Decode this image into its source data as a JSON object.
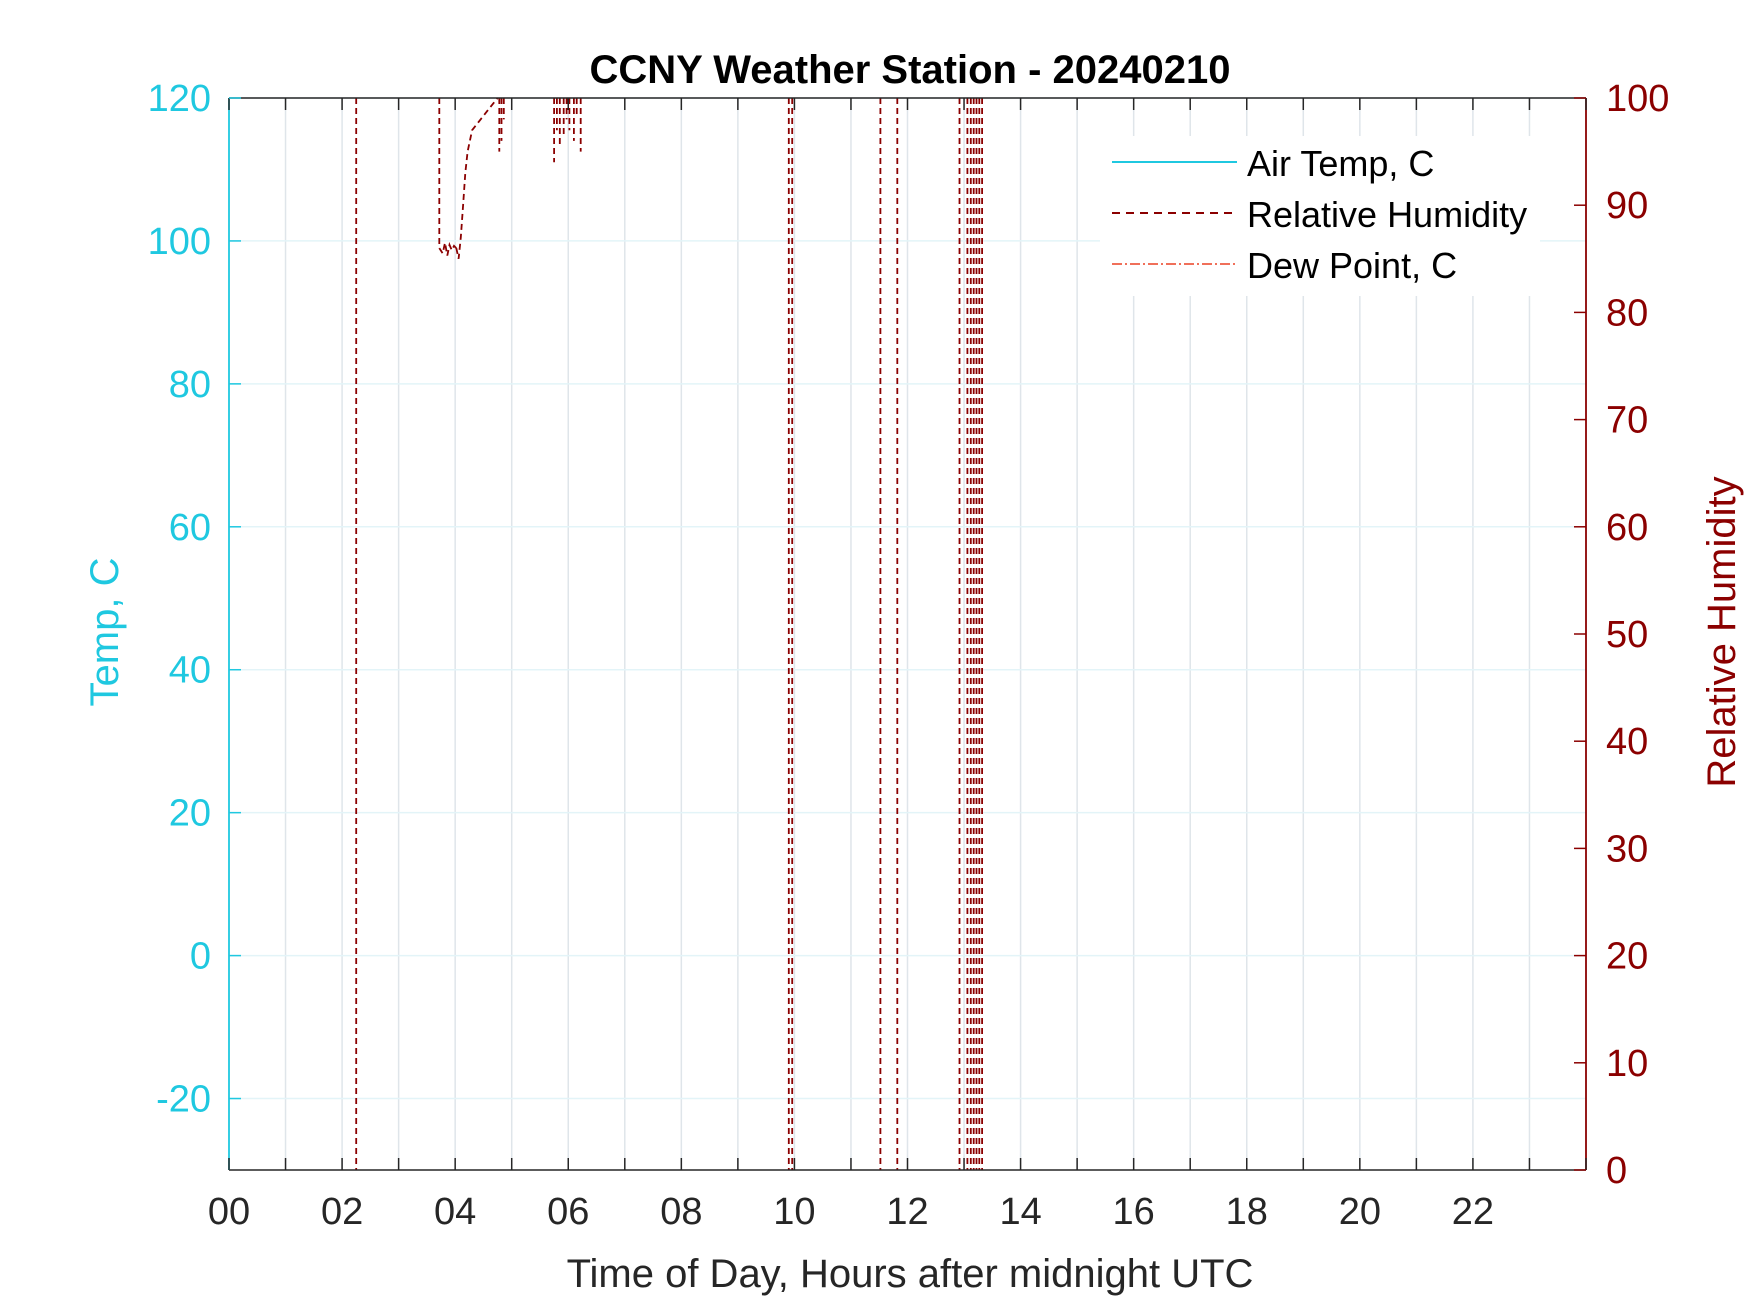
{
  "chart_data": {
    "type": "line",
    "title": "CCNY Weather Station - 20240210",
    "xlabel": "Time of Day, Hours after midnight UTC",
    "ylabel_left": "Temp, C",
    "ylabel_right": "Relative Humidity",
    "xlim": [
      0,
      24
    ],
    "ylim_left": [
      -30,
      120
    ],
    "ylim_right": [
      0,
      100
    ],
    "x_ticks": [
      0,
      2,
      4,
      6,
      8,
      10,
      12,
      14,
      16,
      18,
      20,
      22
    ],
    "x_tick_labels": [
      "00",
      "02",
      "04",
      "06",
      "08",
      "10",
      "12",
      "14",
      "16",
      "18",
      "20",
      "22"
    ],
    "x_minor_grid_step": 1,
    "y_left_ticks": [
      -20,
      0,
      20,
      40,
      60,
      80,
      100,
      120
    ],
    "y_left_tick_labels": [
      "-20",
      "0",
      "20",
      "40",
      "60",
      "80",
      "100",
      "120"
    ],
    "y_right_ticks": [
      0,
      10,
      20,
      30,
      40,
      50,
      60,
      70,
      80,
      90,
      100
    ],
    "y_right_tick_labels": [
      "0",
      "10",
      "20",
      "30",
      "40",
      "50",
      "60",
      "70",
      "80",
      "90",
      "100"
    ],
    "legend": {
      "placement": "top-right",
      "entries": [
        "Air Temp, C",
        "Relative Humidity",
        "Dew Point, C"
      ]
    },
    "colors": {
      "air_temp": "#1fc8e0",
      "relative_humidity": "#8b0000",
      "dew_point": "#f0705a",
      "axis_left": "#1fc8e0",
      "axis_right": "#8b0000",
      "text": "#262626",
      "grid": "#dfe5ea"
    },
    "series": [
      {
        "name": "Air Temp, C",
        "axis": "left",
        "style": "solid",
        "x": [],
        "y": []
      },
      {
        "name": "Dew Point, C",
        "axis": "left",
        "style": "dashdot",
        "x": [],
        "y": []
      },
      {
        "name": "Relative Humidity",
        "axis": "right",
        "style": "dashed",
        "segments": [
          {
            "x": [
              2.25,
              2.25
            ],
            "y": [
              100,
              0
            ]
          },
          {
            "x": [
              3.72,
              3.72
            ],
            "y": [
              100,
              86
            ]
          },
          {
            "x": [
              3.72,
              3.78,
              3.82,
              3.86,
              3.9,
              3.94,
              3.98,
              4.02
            ],
            "y": [
              86,
              85.5,
              86.5,
              85.3,
              86.3,
              85.8,
              86.2,
              86
            ]
          },
          {
            "x": [
              4.02,
              4.06,
              4.1,
              4.14,
              4.18,
              4.22,
              4.3,
              4.45,
              4.6,
              4.75
            ],
            "y": [
              86,
              85,
              87,
              90,
              93,
              95,
              97,
              98,
              99,
              100
            ]
          },
          {
            "x": [
              4.78,
              4.78
            ],
            "y": [
              100,
              95
            ]
          },
          {
            "x": [
              4.82,
              4.82
            ],
            "y": [
              100,
              96
            ]
          },
          {
            "x": [
              4.86,
              4.86
            ],
            "y": [
              100,
              98
            ]
          },
          {
            "x": [
              5.75,
              5.75
            ],
            "y": [
              100,
              94
            ]
          },
          {
            "x": [
              5.8,
              5.8
            ],
            "y": [
              100,
              97
            ]
          },
          {
            "x": [
              5.85,
              5.85
            ],
            "y": [
              100,
              95.5
            ]
          },
          {
            "x": [
              5.92,
              5.92
            ],
            "y": [
              100,
              96.5
            ]
          },
          {
            "x": [
              5.97,
              5.97
            ],
            "y": [
              100,
              98
            ]
          },
          {
            "x": [
              6.02,
              6.02
            ],
            "y": [
              100,
              97
            ]
          },
          {
            "x": [
              6.1,
              6.1
            ],
            "y": [
              100,
              96
            ]
          },
          {
            "x": [
              6.15,
              6.15
            ],
            "y": [
              100,
              98.5
            ]
          },
          {
            "x": [
              6.22,
              6.22
            ],
            "y": [
              100,
              95
            ]
          },
          {
            "x": [
              9.9,
              9.9
            ],
            "y": [
              100,
              0
            ]
          },
          {
            "x": [
              9.96,
              9.96
            ],
            "y": [
              100,
              0
            ]
          },
          {
            "x": [
              11.52,
              11.52
            ],
            "y": [
              100,
              0
            ]
          },
          {
            "x": [
              11.82,
              11.82
            ],
            "y": [
              100,
              0
            ]
          },
          {
            "x": [
              12.92,
              12.92
            ],
            "y": [
              100,
              0
            ]
          },
          {
            "x": [
              13.06,
              13.06
            ],
            "y": [
              100,
              0
            ]
          },
          {
            "x": [
              13.12,
              13.12
            ],
            "y": [
              100,
              0
            ]
          },
          {
            "x": [
              13.17,
              13.17
            ],
            "y": [
              100,
              0
            ]
          },
          {
            "x": [
              13.22,
              13.22
            ],
            "y": [
              100,
              0
            ]
          },
          {
            "x": [
              13.27,
              13.27
            ],
            "y": [
              100,
              0
            ]
          },
          {
            "x": [
              13.32,
              13.32
            ],
            "y": [
              100,
              0
            ]
          }
        ]
      }
    ]
  }
}
